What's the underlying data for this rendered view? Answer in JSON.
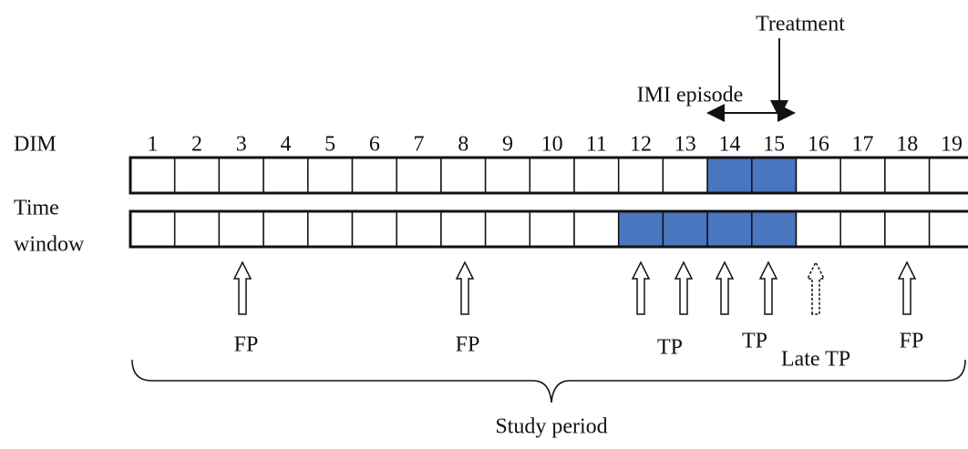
{
  "annotations": {
    "treatment": "Treatment",
    "episode": "IMI episode"
  },
  "row_labels": {
    "dim": "DIM",
    "time_window": [
      "Time",
      "window"
    ]
  },
  "dim_days": [
    1,
    2,
    3,
    4,
    5,
    6,
    7,
    8,
    9,
    10,
    11,
    12,
    13,
    14,
    15,
    16,
    17,
    18,
    19
  ],
  "outcomes": [
    "FP",
    "FP",
    "TP",
    "TP",
    "Late TP",
    "FP"
  ],
  "study_period": "Study period"
}
